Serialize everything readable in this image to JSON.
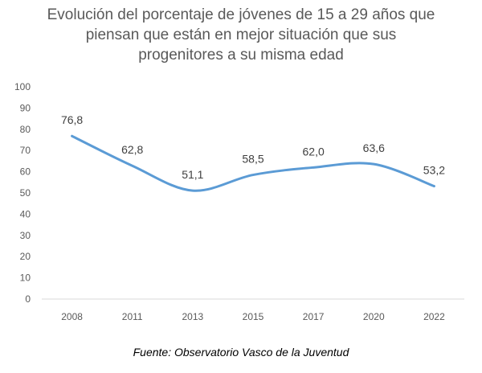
{
  "chart_data": {
    "type": "line",
    "title_lines": [
      "Evolución del porcentaje de jóvenes de 15 a 29 años que",
      "piensan que están en mejor situación que sus",
      "progenitores a su misma edad"
    ],
    "categories": [
      "2008",
      "2011",
      "2013",
      "2015",
      "2017",
      "2020",
      "2022"
    ],
    "values": [
      76.8,
      62.8,
      51.1,
      58.5,
      62.0,
      63.6,
      53.2
    ],
    "data_labels": [
      "76,8",
      "62,8",
      "51,1",
      "58,5",
      "62,0",
      "63,6",
      "53,2"
    ],
    "y_ticks": [
      "0",
      "10",
      "20",
      "30",
      "40",
      "50",
      "60",
      "70",
      "80",
      "90",
      "100"
    ],
    "ylim": [
      0,
      100
    ],
    "smooth": true,
    "grid": false,
    "legend": "none",
    "colors": {
      "line": "#5B9BD5",
      "text": "#595959",
      "axis": "#D9D9D9"
    }
  },
  "source": "Fuente: Observatorio Vasco de la Juventud"
}
